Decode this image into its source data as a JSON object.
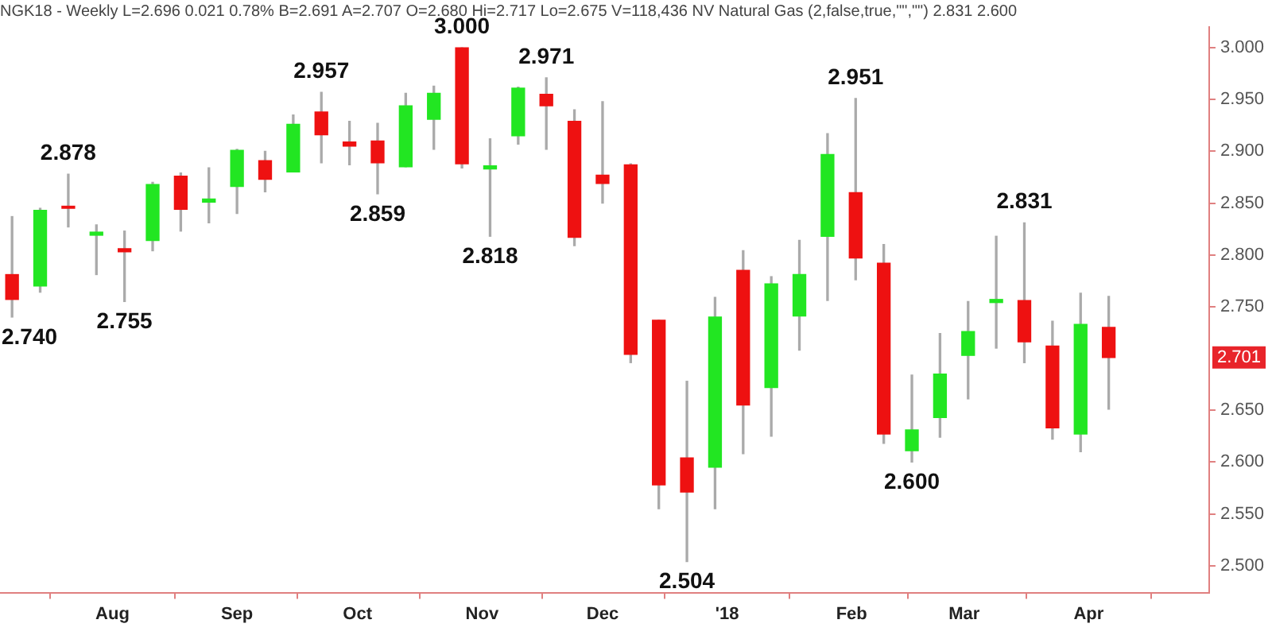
{
  "chart_data": {
    "type": "candlestick",
    "title": "NGK18 - Weekly L=2.696 0.021 0.78% B=2.691 A=2.707 O=2.680 Hi=2.717 Lo=2.675 V=118,436 NV Natural Gas (2,false,true,\"\",\"\") 2.831 2.600",
    "x": [
      "2017-07-07",
      "2017-07-14",
      "2017-07-21",
      "2017-07-28",
      "2017-08-04",
      "2017-08-11",
      "2017-08-18",
      "2017-08-25",
      "2017-09-01",
      "2017-09-08",
      "2017-09-15",
      "2017-09-22",
      "2017-09-29",
      "2017-10-06",
      "2017-10-13",
      "2017-10-20",
      "2017-10-27",
      "2017-11-03",
      "2017-11-10",
      "2017-11-17",
      "2017-11-24",
      "2017-12-01",
      "2017-12-08",
      "2017-12-15",
      "2017-12-22",
      "2017-12-29",
      "2018-01-05",
      "2018-01-12",
      "2018-01-19",
      "2018-01-26",
      "2018-02-02",
      "2018-02-09",
      "2018-02-16",
      "2018-02-23",
      "2018-03-02",
      "2018-03-09",
      "2018-03-16",
      "2018-03-23",
      "2018-03-30",
      "2018-04-06"
    ],
    "ohlc": [
      [
        2.781,
        2.837,
        2.74,
        2.757
      ],
      [
        2.77,
        2.845,
        2.764,
        2.843
      ],
      [
        2.847,
        2.878,
        2.827,
        2.845
      ],
      [
        2.819,
        2.829,
        2.781,
        2.822
      ],
      [
        2.806,
        2.823,
        2.755,
        2.803
      ],
      [
        2.814,
        2.87,
        2.804,
        2.868
      ],
      [
        2.876,
        2.879,
        2.823,
        2.844
      ],
      [
        2.851,
        2.884,
        2.831,
        2.854
      ],
      [
        2.866,
        2.902,
        2.84,
        2.901
      ],
      [
        2.891,
        2.9,
        2.861,
        2.873
      ],
      [
        2.88,
        2.935,
        2.88,
        2.926
      ],
      [
        2.938,
        2.957,
        2.889,
        2.916
      ],
      [
        2.909,
        2.929,
        2.887,
        2.905
      ],
      [
        2.91,
        2.927,
        2.859,
        2.889
      ],
      [
        2.885,
        2.956,
        2.885,
        2.944
      ],
      [
        2.931,
        2.963,
        2.902,
        2.956
      ],
      [
        3.0,
        3.0,
        2.884,
        2.888
      ],
      [
        2.883,
        2.912,
        2.818,
        2.886
      ],
      [
        2.915,
        2.962,
        2.907,
        2.961
      ],
      [
        2.955,
        2.971,
        2.902,
        2.944
      ],
      [
        2.929,
        2.94,
        2.809,
        2.817
      ],
      [
        2.877,
        2.948,
        2.85,
        2.869
      ],
      [
        2.887,
        2.888,
        2.696,
        2.704
      ],
      [
        2.737,
        2.737,
        2.555,
        2.578
      ],
      [
        2.604,
        2.678,
        2.504,
        2.571
      ],
      [
        2.595,
        2.759,
        2.555,
        2.74
      ],
      [
        2.785,
        2.804,
        2.608,
        2.655
      ],
      [
        2.672,
        2.779,
        2.625,
        2.772
      ],
      [
        2.741,
        2.814,
        2.708,
        2.781
      ],
      [
        2.818,
        2.917,
        2.756,
        2.897
      ],
      [
        2.86,
        2.951,
        2.776,
        2.797
      ],
      [
        2.792,
        2.81,
        2.618,
        2.627
      ],
      [
        2.611,
        2.684,
        2.6,
        2.631
      ],
      [
        2.643,
        2.724,
        2.624,
        2.685
      ],
      [
        2.703,
        2.755,
        2.661,
        2.726
      ],
      [
        2.754,
        2.818,
        2.71,
        2.757
      ],
      [
        2.756,
        2.831,
        2.696,
        2.716
      ],
      [
        2.712,
        2.736,
        2.622,
        2.633
      ],
      [
        2.627,
        2.763,
        2.61,
        2.733
      ],
      [
        2.73,
        2.76,
        2.651,
        2.701
      ]
    ],
    "colors": [
      "#ee1111",
      "#22e622",
      "#ee1111",
      "#22e622",
      "#ee1111",
      "#22e622",
      "#ee1111",
      "#22e622",
      "#22e622",
      "#ee1111",
      "#22e622",
      "#ee1111",
      "#ee1111",
      "#ee1111",
      "#22e622",
      "#22e622",
      "#ee1111",
      "#22e622",
      "#22e622",
      "#ee1111",
      "#ee1111",
      "#ee1111",
      "#ee1111",
      "#ee1111",
      "#ee1111",
      "#22e622",
      "#ee1111",
      "#22e622",
      "#22e622",
      "#22e622",
      "#ee1111",
      "#ee1111",
      "#22e622",
      "#22e622",
      "#22e622",
      "#22e622",
      "#ee1111",
      "#ee1111",
      "#22e622",
      "#ee1111"
    ],
    "xlim": [
      "2017-07-04",
      "2018-05-01"
    ],
    "xticks": [
      {
        "value": "2017-08-01",
        "label": "Aug"
      },
      {
        "value": "2017-09-01",
        "label": "Sep"
      },
      {
        "value": "2017-10-01",
        "label": "Oct"
      },
      {
        "value": "2017-11-01",
        "label": "Nov"
      },
      {
        "value": "2017-12-01",
        "label": "Dec"
      },
      {
        "value": "2018-01-01",
        "label": "'18"
      },
      {
        "value": "2018-02-01",
        "label": "Feb"
      },
      {
        "value": "2018-03-01",
        "label": "Mar"
      },
      {
        "value": "2018-04-01",
        "label": "Apr"
      }
    ],
    "ylim": [
      2.474,
      3.02
    ],
    "yticks": [
      {
        "value": 2.5,
        "label": "2.500"
      },
      {
        "value": 2.55,
        "label": "2.550"
      },
      {
        "value": 2.6,
        "label": "2.600"
      },
      {
        "value": 2.65,
        "label": "2.650"
      },
      {
        "value": 2.75,
        "label": "2.750"
      },
      {
        "value": 2.8,
        "label": "2.800"
      },
      {
        "value": 2.85,
        "label": "2.850"
      },
      {
        "value": 2.9,
        "label": "2.900"
      },
      {
        "value": 2.95,
        "label": "2.950"
      },
      {
        "value": 3.0,
        "label": "3.000"
      }
    ],
    "annotations": [
      {
        "text": "2.740",
        "x": "2017-07-07",
        "y": 2.74
      },
      {
        "text": "2.878",
        "x": "2017-07-21",
        "y": 2.878
      },
      {
        "text": "2.755",
        "x": "2017-08-04",
        "y": 2.755
      },
      {
        "text": "2.957",
        "x": "2017-09-22",
        "y": 2.957
      },
      {
        "text": "2.859",
        "x": "2017-10-06",
        "y": 2.859
      },
      {
        "text": "3.000",
        "x": "2017-10-27",
        "y": 3.0
      },
      {
        "text": "2.818",
        "x": "2017-11-03",
        "y": 2.818
      },
      {
        "text": "2.971",
        "x": "2017-11-17",
        "y": 2.971
      },
      {
        "text": "2.504",
        "x": "2017-12-22",
        "y": 2.504
      },
      {
        "text": "2.951",
        "x": "2018-02-02",
        "y": 2.951
      },
      {
        "text": "2.600",
        "x": "2018-02-16",
        "y": 2.6
      },
      {
        "text": "2.831",
        "x": "2018-03-16",
        "y": 2.831
      },
      {
        "text": "2.701",
        "y": 2.701
      }
    ],
    "grid": false,
    "legend": false
  }
}
